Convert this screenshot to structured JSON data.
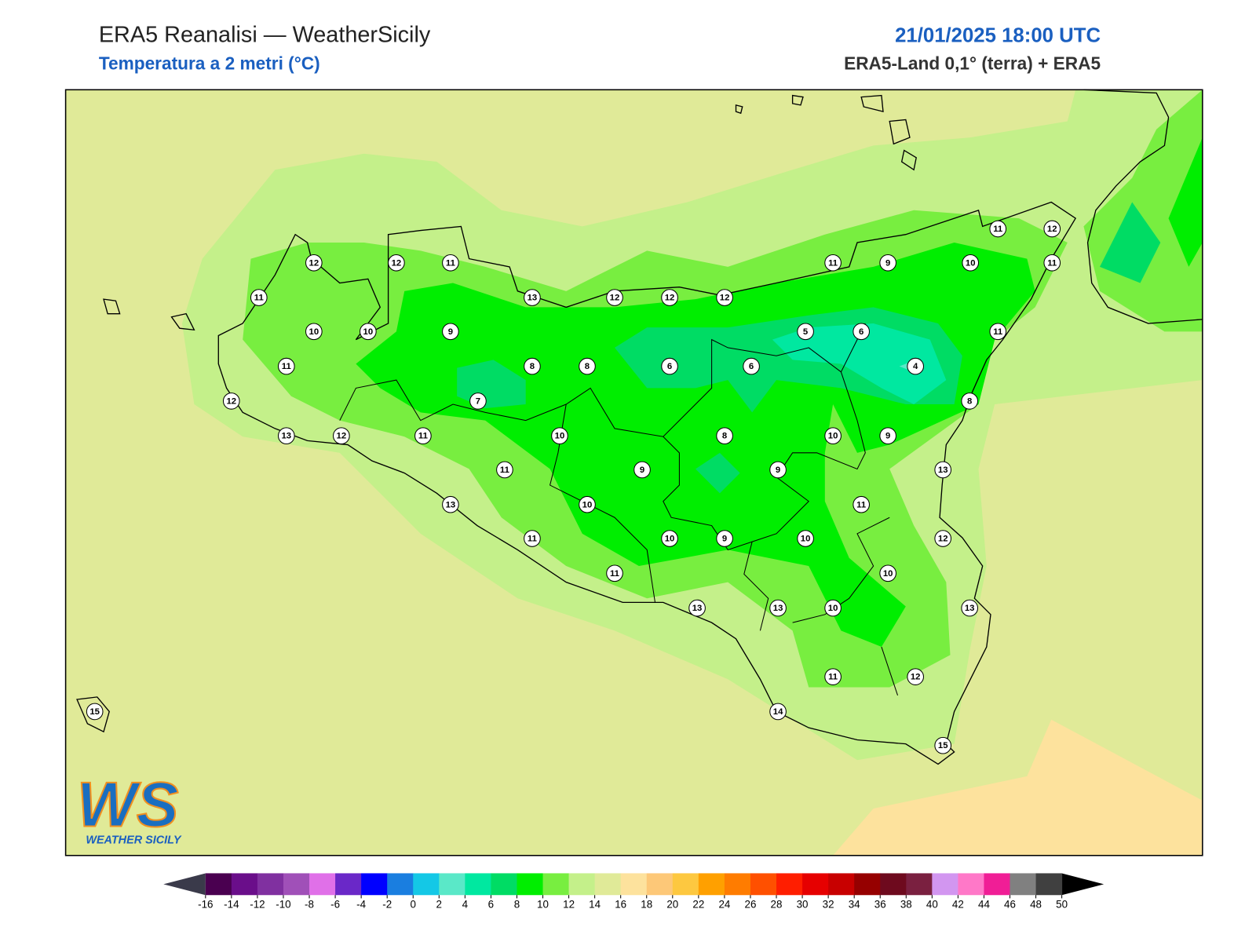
{
  "header": {
    "title": "ERA5 Reanalisi — WeatherSicily",
    "subtitle": "Temperatura a 2 metri (°C)",
    "datetime": "21/01/2025 18:00 UTC",
    "source": "ERA5-Land 0,1° (terra) + ERA5"
  },
  "stations": [
    12,
    12,
    11,
    11,
    10,
    10,
    9,
    11,
    13,
    12,
    12,
    12,
    11,
    9,
    10,
    11,
    12,
    11,
    11,
    5,
    6,
    4,
    6,
    6,
    8,
    8,
    7,
    12,
    13,
    12,
    11,
    10,
    8,
    10,
    9,
    8,
    11,
    9,
    9,
    13,
    13,
    10,
    11,
    11,
    10,
    9,
    10,
    12,
    11,
    10,
    13,
    13,
    10,
    13,
    11,
    12,
    14,
    15,
    15
  ],
  "colorbar": {
    "ticks": [
      -16,
      -14,
      -12,
      -10,
      -8,
      -6,
      -4,
      -2,
      0,
      2,
      4,
      6,
      8,
      10,
      12,
      14,
      16,
      18,
      20,
      22,
      24,
      26,
      28,
      30,
      32,
      34,
      36,
      38,
      40,
      42,
      44,
      46,
      48,
      50
    ],
    "colors": [
      "#4a0050",
      "#6a0e8a",
      "#8030a0",
      "#a050b8",
      "#e070e8",
      "#6a28c8",
      "#0000ff",
      "#1a7ee0",
      "#14c8e6",
      "#5ae8c8",
      "#00e8a0",
      "#00dc64",
      "#00ee00",
      "#78ee40",
      "#c4f08a",
      "#e0ea98",
      "#fde29d",
      "#fdc878",
      "#fdc840",
      "#ffa000",
      "#ff7c00",
      "#ff5000",
      "#ff1e00",
      "#e60000",
      "#c80000",
      "#960000",
      "#6e0a1e",
      "#7a2040",
      "#d296f0",
      "#ff78c8",
      "#f01e96",
      "#808080",
      "#404040"
    ],
    "under_color": "#3a3a4a",
    "over_color": "#000000"
  },
  "logo": {
    "text": "WS",
    "subtitle": "WEATHER SICILY"
  }
}
